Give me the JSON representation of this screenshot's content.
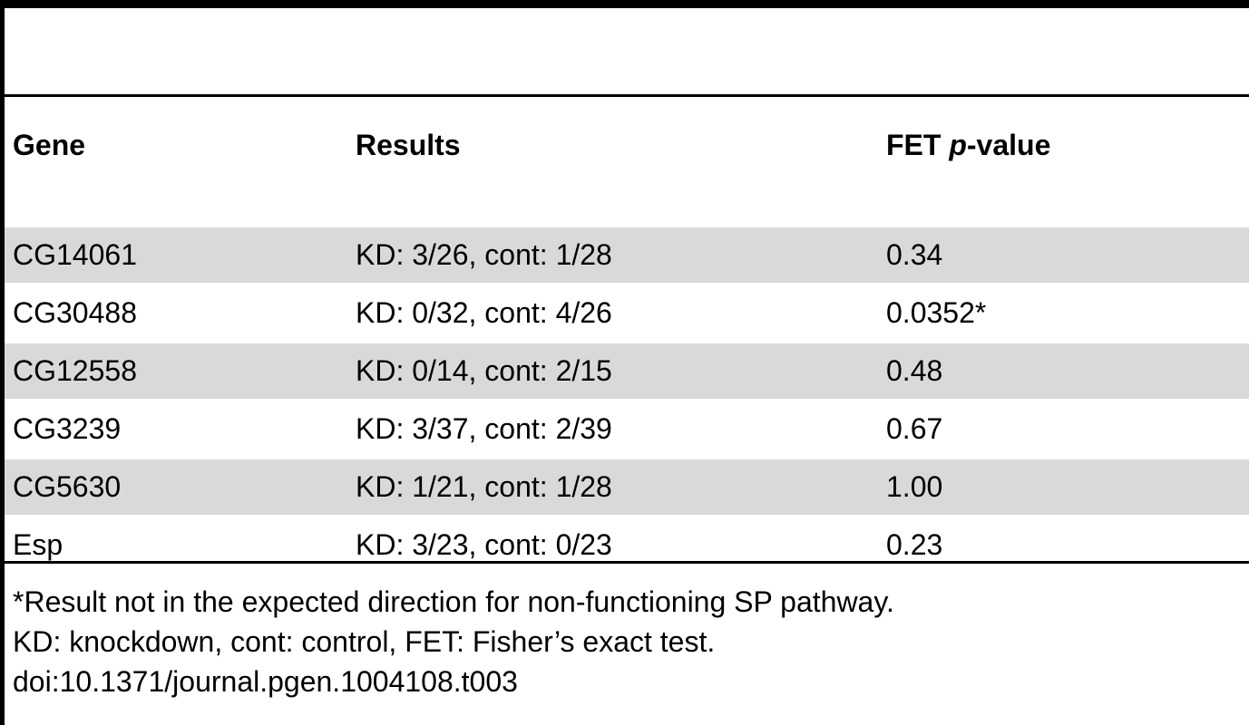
{
  "table": {
    "headers": {
      "gene": "Gene",
      "results": "Results",
      "fet_prefix": "FET ",
      "fet_italic": "p",
      "fet_suffix": "-value"
    },
    "rows": [
      {
        "gene": "CG14061",
        "results": "KD: 3/26, cont: 1/28",
        "p_value": "0.34"
      },
      {
        "gene": "CG30488",
        "results": "KD: 0/32, cont: 4/26",
        "p_value": "0.0352*"
      },
      {
        "gene": "CG12558",
        "results": "KD: 0/14, cont: 2/15",
        "p_value": "0.48"
      },
      {
        "gene": "CG3239",
        "results": "KD: 3/37, cont: 2/39",
        "p_value": "0.67"
      },
      {
        "gene": "CG5630",
        "results": "KD: 1/21, cont: 1/28",
        "p_value": "1.00"
      },
      {
        "gene": "Esp",
        "results": "KD: 3/23, cont: 0/23",
        "p_value": "0.23"
      }
    ]
  },
  "footnotes": {
    "note1": "*Result not in the expected direction for non-functioning SP pathway.",
    "note2": "KD: knockdown, cont: control, FET: Fisher’s exact test.",
    "doi": "doi:10.1371/journal.pgen.1004108.t003"
  }
}
